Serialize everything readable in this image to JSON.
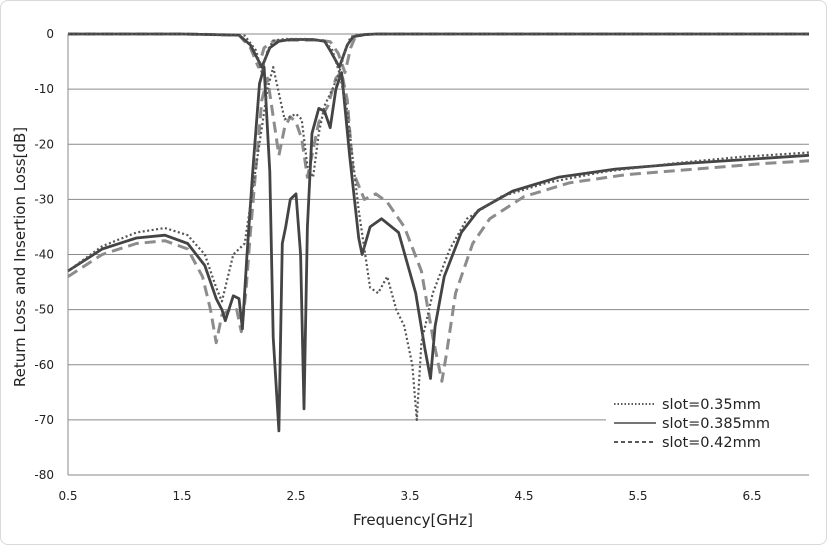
{
  "chart_data": {
    "type": "line",
    "title": "",
    "xlabel": "Frequency[GHz]",
    "ylabel": "Return Loss and Insertion Loss[dB]",
    "xlim": [
      0.5,
      7.0
    ],
    "ylim": [
      -80,
      0
    ],
    "x_ticks": [
      "0.5",
      "1.5",
      "2.5",
      "3.5",
      "4.5",
      "5.5",
      "6.5"
    ],
    "y_ticks": [
      "0",
      "-10",
      "-20",
      "-30",
      "-40",
      "-50",
      "-60",
      "-70",
      "-80"
    ],
    "grid": "horizontal",
    "legend_position": "bottom-right",
    "legend": [
      "slot=0.35mm",
      "slot=0.385mm",
      "slot=0.42mm"
    ],
    "series": [
      {
        "name": "slot=0.35mm",
        "style": "dotted",
        "color": "#555555",
        "return_loss": {
          "x": [
            0.5,
            0.8,
            1.1,
            1.35,
            1.55,
            1.7,
            1.8,
            1.85,
            1.95,
            2.05,
            2.15,
            2.25,
            2.3,
            2.4,
            2.5,
            2.55,
            2.6,
            2.65,
            2.7,
            2.75,
            2.82,
            2.88,
            2.95,
            3.05,
            3.15,
            3.22,
            3.3,
            3.38,
            3.45,
            3.52,
            3.56,
            3.6,
            3.7,
            3.85,
            4.0,
            4.3,
            4.7,
            5.2,
            5.8,
            6.4,
            7.0
          ],
          "y": [
            -43,
            -38.5,
            -36,
            -35.2,
            -36.5,
            -40,
            -46,
            -48.5,
            -40,
            -38,
            -24,
            -10,
            -6,
            -15.5,
            -14.5,
            -15.5,
            -24,
            -26,
            -18,
            -13,
            -10,
            -7,
            -14,
            -32,
            -46,
            -47,
            -44,
            -50,
            -53,
            -60,
            -70,
            -56,
            -47,
            -39,
            -33.5,
            -29.5,
            -27,
            -25,
            -23.5,
            -22.3,
            -21.5
          ]
        },
        "insertion_loss": {
          "x": [
            0.5,
            1.5,
            2.05,
            2.15,
            2.2,
            2.25,
            2.3,
            2.4,
            2.6,
            2.75,
            2.82,
            2.88,
            2.93,
            2.98,
            3.05,
            3.2,
            4.0,
            5.5,
            7.0
          ],
          "y": [
            0,
            0,
            -0.3,
            -3,
            -7,
            -3,
            -1.2,
            -0.9,
            -0.9,
            -1.2,
            -3,
            -7,
            -3,
            -0.5,
            -0.1,
            0,
            0,
            0,
            0
          ]
        }
      },
      {
        "name": "slot=0.385mm",
        "style": "solid",
        "color": "#444444",
        "return_loss": {
          "x": [
            0.5,
            0.8,
            1.1,
            1.35,
            1.55,
            1.7,
            1.8,
            1.85,
            1.88,
            1.95,
            2.0,
            2.03,
            2.07,
            2.12,
            2.18,
            2.22,
            2.27,
            2.3,
            2.35,
            2.38,
            2.41,
            2.45,
            2.5,
            2.54,
            2.57,
            2.6,
            2.64,
            2.7,
            2.75,
            2.8,
            2.85,
            2.9,
            2.97,
            3.05,
            3.08,
            3.15,
            3.25,
            3.4,
            3.55,
            3.63,
            3.68,
            3.72,
            3.8,
            3.95,
            4.1,
            4.4,
            4.8,
            5.3,
            5.9,
            6.5,
            7.0
          ],
          "y": [
            -43,
            -39,
            -37,
            -36.5,
            -38,
            -42,
            -48,
            -50,
            -52,
            -47.5,
            -48,
            -53.5,
            -40,
            -25,
            -9,
            -6,
            -25,
            -55,
            -72,
            -38,
            -35,
            -30,
            -29,
            -40,
            -68,
            -35,
            -18,
            -13.5,
            -14,
            -17,
            -10,
            -7,
            -22,
            -37,
            -40,
            -35,
            -33.5,
            -36,
            -47,
            -57,
            -62.5,
            -53,
            -44,
            -36,
            -32,
            -28.5,
            -26,
            -24.5,
            -23.5,
            -22.7,
            -22
          ]
        },
        "insertion_loss": {
          "x": [
            0.5,
            1.5,
            2.0,
            2.1,
            2.2,
            2.27,
            2.35,
            2.45,
            2.65,
            2.75,
            2.8,
            2.88,
            2.95,
            3.0,
            3.1,
            3.2,
            4.0,
            5.5,
            7.0
          ],
          "y": [
            0,
            0,
            -0.2,
            -2,
            -6,
            -2.5,
            -1.3,
            -1.0,
            -1.0,
            -1.3,
            -3,
            -6,
            -2,
            -0.5,
            -0.1,
            0,
            0,
            0,
            0
          ]
        }
      },
      {
        "name": "slot=0.42mm",
        "style": "dashed",
        "color": "#8c8c8c",
        "return_loss": {
          "x": [
            0.5,
            0.8,
            1.1,
            1.35,
            1.55,
            1.68,
            1.75,
            1.8,
            1.85,
            1.92,
            1.98,
            2.02,
            2.06,
            2.1,
            2.15,
            2.2,
            2.25,
            2.3,
            2.35,
            2.4,
            2.45,
            2.5,
            2.55,
            2.6,
            2.62,
            2.7,
            2.78,
            2.85,
            2.9,
            2.95,
            3.0,
            3.1,
            3.2,
            3.3,
            3.45,
            3.6,
            3.7,
            3.78,
            3.82,
            3.9,
            4.05,
            4.2,
            4.5,
            4.9,
            5.4,
            6.0,
            6.6,
            7.0
          ],
          "y": [
            -44,
            -40,
            -38,
            -37.5,
            -39,
            -44,
            -50,
            -56,
            -51,
            -50,
            -50,
            -54,
            -47,
            -36,
            -24,
            -12,
            -8,
            -15,
            -22,
            -17,
            -15,
            -16,
            -19,
            -26,
            -24,
            -16,
            -13,
            -8,
            -7,
            -12,
            -25,
            -30,
            -29,
            -30.5,
            -35,
            -43,
            -55,
            -63,
            -58,
            -47,
            -38,
            -33.5,
            -29.5,
            -27,
            -25.5,
            -24.5,
            -23.5,
            -23
          ]
        },
        "insertion_loss": {
          "x": [
            0.5,
            1.5,
            2.0,
            2.1,
            2.17,
            2.22,
            2.3,
            2.45,
            2.7,
            2.8,
            2.87,
            2.93,
            2.98,
            3.02,
            3.1,
            3.2,
            4.0,
            5.5,
            7.0
          ],
          "y": [
            0,
            0,
            -0.2,
            -2.5,
            -6,
            -2.5,
            -1.3,
            -1.1,
            -1.1,
            -1.4,
            -3.5,
            -7,
            -2.5,
            -0.5,
            -0.1,
            0,
            0,
            0,
            0
          ]
        }
      }
    ]
  }
}
